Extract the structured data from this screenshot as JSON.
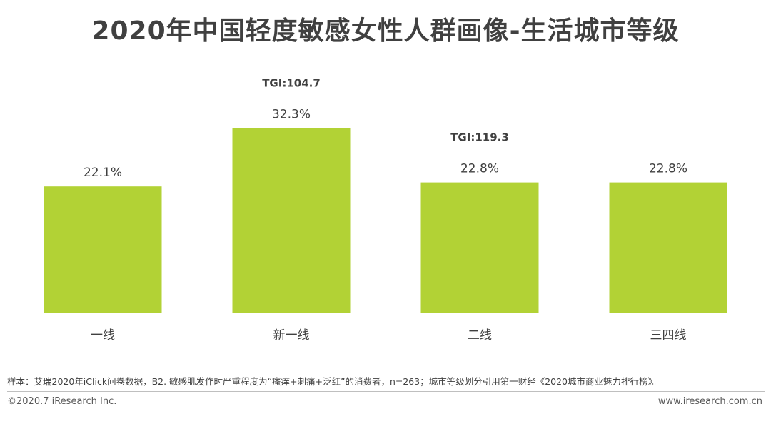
{
  "page": {
    "title": "2020年中国轻度敏感女性人群画像-生活城市等级",
    "footnote": "样本：艾瑞2020年iClick问卷数据，B2. 敏感肌发作时严重程度为“瘙痒+刺痛+泛红”的消费者，n=263；城市等级划分引用第一财经《2020城市商业魅力排行榜》。",
    "copyright": "©2020.7 iResearch Inc.",
    "website": "www.iresearch.com.cn"
  },
  "chart_data": {
    "type": "bar",
    "title": "2020年中国轻度敏感女性人群画像-生活城市等级",
    "categories": [
      "一线",
      "新一线",
      "二线",
      "三四线"
    ],
    "values": [
      22.1,
      32.3,
      22.8,
      22.8
    ],
    "value_labels": [
      "22.1%",
      "32.3%",
      "22.8%",
      "22.8%"
    ],
    "tgi_labels": [
      "",
      "TGI:104.7",
      "TGI:119.3",
      ""
    ],
    "ylim": [
      0,
      35
    ],
    "grid": false,
    "legend": "none",
    "colors": {
      "bar": "#b2d235",
      "axis": "#808080",
      "text": "#404040"
    }
  }
}
